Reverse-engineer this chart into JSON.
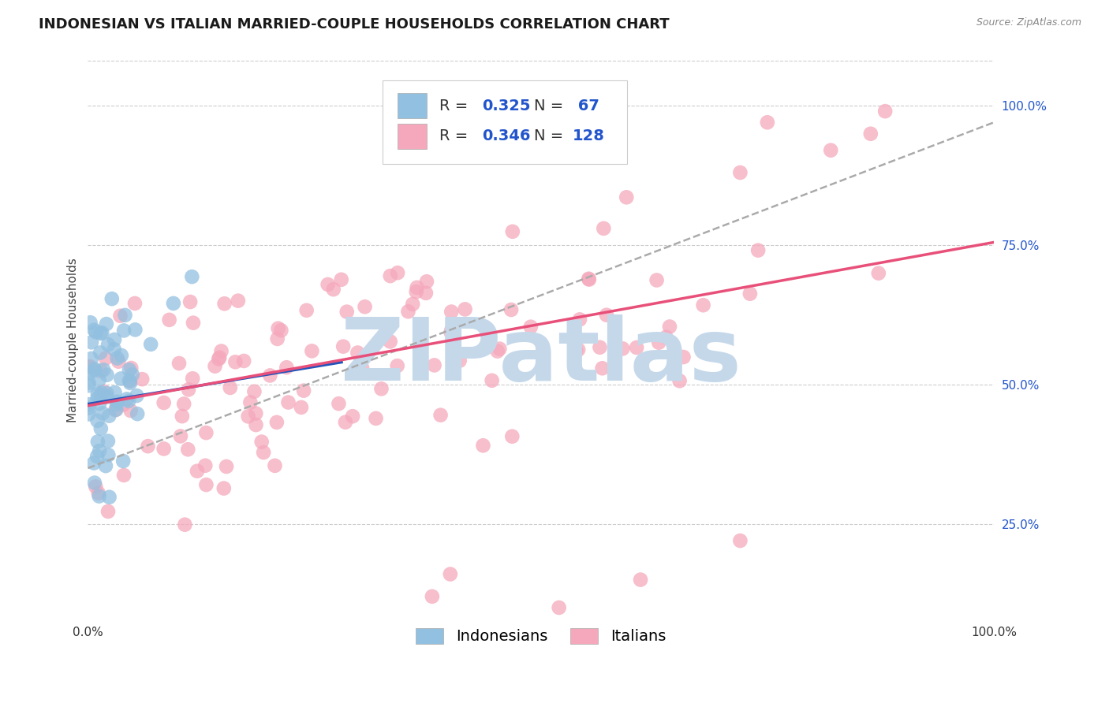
{
  "title": "INDONESIAN VS ITALIAN MARRIED-COUPLE HOUSEHOLDS CORRELATION CHART",
  "source_text": "Source: ZipAtlas.com",
  "ylabel": "Married-couple Households",
  "xlim": [
    0.0,
    1.0
  ],
  "ylim": [
    0.08,
    1.08
  ],
  "yticks": [
    0.25,
    0.5,
    0.75,
    1.0
  ],
  "ytick_labels": [
    "25.0%",
    "50.0%",
    "75.0%",
    "100.0%"
  ],
  "xticks": [
    0.0,
    1.0
  ],
  "xtick_labels": [
    "0.0%",
    "100.0%"
  ],
  "indonesian_R": 0.325,
  "indonesian_N": 67,
  "italian_R": 0.346,
  "italian_N": 128,
  "blue_color": "#92C0E0",
  "pink_color": "#F5A8BC",
  "blue_line_color": "#2255BB",
  "pink_line_color": "#E8507A",
  "gray_dash_color": "#AAAAAA",
  "background_color": "#FFFFFF",
  "grid_color": "#CCCCCC",
  "watermark_text": "ZIPatlas",
  "watermark_color": "#C5D8EA",
  "legend_text_color": "#333333",
  "legend_value_color": "#2255CC",
  "title_fontsize": 13,
  "axis_label_fontsize": 11,
  "tick_fontsize": 11,
  "legend_fontsize": 14,
  "blue_trend_start_y": 0.465,
  "blue_trend_end_y": 0.54,
  "blue_trend_end_x": 0.28,
  "pink_trend_start_y": 0.462,
  "pink_trend_end_y": 0.755,
  "gray_trend_start_x": 0.0,
  "gray_trend_start_y": 0.35,
  "gray_trend_end_x": 1.0,
  "gray_trend_end_y": 0.97
}
